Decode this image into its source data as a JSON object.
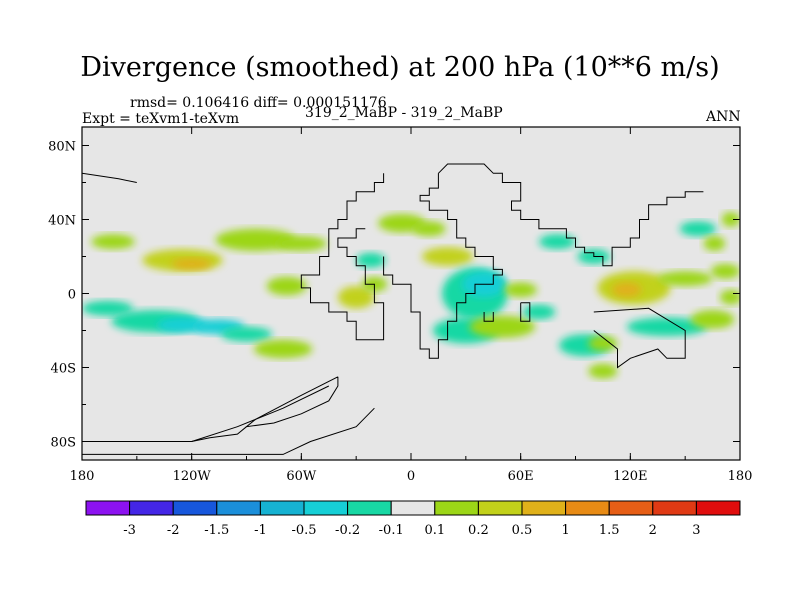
{
  "title": "Divergence (smoothed) at 200 hPa (10**6 m/s)",
  "stats": "rmsd= 0.106416 diff= 0.000151176",
  "left_string": "Expt = teXvm1-teXvm",
  "center_string": "319_2_MaBP - 319_2_MaBP",
  "right_string": "ANN",
  "colors": {
    "missing": "#e6e6e6",
    "coast": "#000000"
  },
  "chart_data": {
    "type": "heatmap",
    "projection": "cylindrical-equidistant",
    "field": "divergence difference",
    "units": "10**6 m/s",
    "xlim": [
      -180,
      180
    ],
    "ylim": [
      -90,
      90
    ],
    "x_ticks": [
      {
        "value": -180,
        "label": "180"
      },
      {
        "value": -120,
        "label": "120W"
      },
      {
        "value": -60,
        "label": "60W"
      },
      {
        "value": 0,
        "label": "0"
      },
      {
        "value": 60,
        "label": "60E"
      },
      {
        "value": 120,
        "label": "120E"
      },
      {
        "value": 180,
        "label": "180"
      }
    ],
    "y_ticks": [
      {
        "value": 80,
        "label": "80N"
      },
      {
        "value": 40,
        "label": "40N"
      },
      {
        "value": 0,
        "label": "0"
      },
      {
        "value": -40,
        "label": "40S"
      },
      {
        "value": -80,
        "label": "80S"
      }
    ],
    "levels": [
      "-3",
      "-2",
      "-1.5",
      "-1",
      "-0.5",
      "-0.2",
      "-0.1",
      "0.1",
      "0.2",
      "0.5",
      "1",
      "1.5",
      "2",
      "3"
    ],
    "colorbar_colors": [
      "#8c12f0",
      "#4426e6",
      "#1757dc",
      "#1b8fda",
      "#16b2d2",
      "#16cfd6",
      "#18d8a4",
      "#e6e6e6",
      "#9cd617",
      "#c2d11a",
      "#e0b11a",
      "#e88b15",
      "#e65e16",
      "#e03a14",
      "#e00d0d"
    ],
    "blobs": [
      {
        "lon": -163,
        "lat": 28,
        "a": 12,
        "b": 4,
        "value": 0.15
      },
      {
        "lon": -125,
        "lat": 18,
        "a": 22,
        "b": 6,
        "value": 0.35
      },
      {
        "lon": -120,
        "lat": 16,
        "a": 11,
        "b": 3,
        "value": 0.75
      },
      {
        "lon": -85,
        "lat": 29,
        "a": 22,
        "b": 6,
        "value": 0.15
      },
      {
        "lon": -60,
        "lat": 27,
        "a": 14,
        "b": 4,
        "value": 0.15
      },
      {
        "lon": -166,
        "lat": -8,
        "a": 14,
        "b": 4,
        "value": -0.15
      },
      {
        "lon": -140,
        "lat": -15,
        "a": 24,
        "b": 6,
        "value": -0.15
      },
      {
        "lon": -125,
        "lat": -17,
        "a": 14,
        "b": 4,
        "value": -0.35
      },
      {
        "lon": -105,
        "lat": -18,
        "a": 14,
        "b": 4,
        "value": -0.35
      },
      {
        "lon": -90,
        "lat": -22,
        "a": 14,
        "b": 4,
        "value": -0.15
      },
      {
        "lon": -68,
        "lat": 4,
        "a": 11,
        "b": 5,
        "value": 0.15
      },
      {
        "lon": -70,
        "lat": -30,
        "a": 16,
        "b": 5,
        "value": 0.15
      },
      {
        "lon": -5,
        "lat": 38,
        "a": 13,
        "b": 5,
        "value": 0.15
      },
      {
        "lon": 10,
        "lat": 35,
        "a": 9,
        "b": 4,
        "value": 0.15
      },
      {
        "lon": 20,
        "lat": 20,
        "a": 14,
        "b": 5,
        "value": 0.25
      },
      {
        "lon": -22,
        "lat": 18,
        "a": 8,
        "b": 4,
        "value": -0.15
      },
      {
        "lon": -30,
        "lat": -2,
        "a": 10,
        "b": 6,
        "value": 0.25
      },
      {
        "lon": -20,
        "lat": 5,
        "a": 7,
        "b": 4,
        "value": 0.15
      },
      {
        "lon": 35,
        "lat": 0,
        "a": 18,
        "b": 14,
        "value": -0.15
      },
      {
        "lon": 40,
        "lat": 5,
        "a": 12,
        "b": 7,
        "value": -0.35
      },
      {
        "lon": 30,
        "lat": -20,
        "a": 18,
        "b": 7,
        "value": -0.15
      },
      {
        "lon": 50,
        "lat": -18,
        "a": 18,
        "b": 6,
        "value": 0.15
      },
      {
        "lon": 60,
        "lat": 2,
        "a": 9,
        "b": 4,
        "value": 0.15
      },
      {
        "lon": 70,
        "lat": -10,
        "a": 9,
        "b": 4,
        "value": -0.15
      },
      {
        "lon": 80,
        "lat": 28,
        "a": 10,
        "b": 4,
        "value": -0.15
      },
      {
        "lon": 100,
        "lat": 20,
        "a": 9,
        "b": 4,
        "value": -0.15
      },
      {
        "lon": 95,
        "lat": -28,
        "a": 14,
        "b": 6,
        "value": -0.15
      },
      {
        "lon": 105,
        "lat": -27,
        "a": 8,
        "b": 4,
        "value": 0.15
      },
      {
        "lon": 105,
        "lat": -42,
        "a": 8,
        "b": 4,
        "value": 0.15
      },
      {
        "lon": 122,
        "lat": 3,
        "a": 20,
        "b": 9,
        "value": 0.3
      },
      {
        "lon": 118,
        "lat": 2,
        "a": 8,
        "b": 4,
        "value": 0.7
      },
      {
        "lon": 150,
        "lat": 8,
        "a": 15,
        "b": 4,
        "value": 0.15
      },
      {
        "lon": 140,
        "lat": -18,
        "a": 22,
        "b": 5,
        "value": -0.15
      },
      {
        "lon": 165,
        "lat": -14,
        "a": 12,
        "b": 5,
        "value": 0.15
      },
      {
        "lon": 172,
        "lat": 12,
        "a": 8,
        "b": 4,
        "value": 0.15
      },
      {
        "lon": 175,
        "lat": -2,
        "a": 6,
        "b": 4,
        "value": 0.15
      },
      {
        "lon": 157,
        "lat": 35,
        "a": 10,
        "b": 4,
        "value": -0.15
      },
      {
        "lon": 166,
        "lat": 27,
        "a": 6,
        "b": 4,
        "value": 0.15
      },
      {
        "lon": 175,
        "lat": 40,
        "a": 5,
        "b": 4,
        "value": 0.15
      }
    ],
    "coastlines": [
      [
        [
          -15,
          65
        ],
        [
          -15,
          60
        ],
        [
          -20,
          60
        ],
        [
          -20,
          55
        ],
        [
          -30,
          55
        ],
        [
          -30,
          50
        ],
        [
          -35,
          50
        ],
        [
          -35,
          40
        ],
        [
          -40,
          40
        ],
        [
          -40,
          35
        ],
        [
          -45,
          35
        ],
        [
          -45,
          20
        ],
        [
          -50,
          20
        ],
        [
          -50,
          10
        ],
        [
          -60,
          10
        ],
        [
          -60,
          3
        ],
        [
          -55,
          3
        ],
        [
          -55,
          -5
        ],
        [
          -45,
          -5
        ],
        [
          -45,
          -10
        ],
        [
          -35,
          -10
        ],
        [
          -35,
          -15
        ],
        [
          -30,
          -15
        ],
        [
          -30,
          -25
        ],
        [
          -15,
          -25
        ],
        [
          -15,
          -5
        ],
        [
          -20,
          -5
        ],
        [
          -20,
          5
        ],
        [
          -25,
          5
        ],
        [
          -25,
          15
        ],
        [
          -30,
          15
        ],
        [
          -30,
          20
        ],
        [
          -35,
          20
        ],
        [
          -35,
          25
        ],
        [
          -40,
          25
        ],
        [
          -40,
          30
        ],
        [
          -30,
          30
        ],
        [
          -30,
          35
        ],
        [
          -25,
          35
        ]
      ],
      [
        [
          -40,
          -45
        ],
        [
          -60,
          -55
        ],
        [
          -85,
          -68
        ],
        [
          -90,
          -72
        ],
        [
          -75,
          -70
        ],
        [
          -60,
          -65
        ],
        [
          -45,
          -58
        ],
        [
          -40,
          -50
        ],
        [
          -40,
          -45
        ]
      ],
      [
        [
          -45,
          -50
        ],
        [
          -70,
          -62
        ],
        [
          -95,
          -72
        ],
        [
          -120,
          -80
        ],
        [
          -180,
          -80
        ]
      ],
      [
        [
          -180,
          -87
        ],
        [
          -70,
          -87
        ],
        [
          -55,
          -80
        ],
        [
          -30,
          -72
        ],
        [
          -20,
          -62
        ]
      ],
      [
        [
          -90,
          -72
        ],
        [
          -95,
          -76
        ],
        [
          -110,
          -78
        ],
        [
          -120,
          -80
        ]
      ],
      [
        [
          15,
          65
        ],
        [
          15,
          57
        ],
        [
          10,
          57
        ],
        [
          10,
          53
        ],
        [
          5,
          53
        ],
        [
          5,
          50
        ],
        [
          10,
          50
        ],
        [
          10,
          45
        ],
        [
          20,
          45
        ],
        [
          20,
          40
        ],
        [
          25,
          40
        ],
        [
          25,
          30
        ],
        [
          30,
          30
        ],
        [
          30,
          25
        ],
        [
          35,
          25
        ],
        [
          35,
          20
        ],
        [
          45,
          20
        ],
        [
          45,
          13
        ],
        [
          50,
          13
        ],
        [
          50,
          10
        ],
        [
          45,
          10
        ],
        [
          45,
          5
        ],
        [
          35,
          5
        ],
        [
          35,
          0
        ],
        [
          30,
          0
        ],
        [
          30,
          -5
        ],
        [
          25,
          -5
        ],
        [
          25,
          -15
        ],
        [
          20,
          -15
        ],
        [
          20,
          -25
        ],
        [
          15,
          -25
        ],
        [
          15,
          -35
        ],
        [
          10,
          -35
        ],
        [
          10,
          -30
        ],
        [
          5,
          -30
        ],
        [
          5,
          -10
        ],
        [
          0,
          -10
        ],
        [
          0,
          5
        ],
        [
          -10,
          5
        ],
        [
          -10,
          10
        ],
        [
          -15,
          10
        ],
        [
          -15,
          20
        ]
      ],
      [
        [
          15,
          65
        ],
        [
          20,
          70
        ],
        [
          40,
          70
        ],
        [
          45,
          65
        ],
        [
          50,
          65
        ],
        [
          50,
          60
        ],
        [
          60,
          60
        ],
        [
          60,
          50
        ],
        [
          55,
          50
        ],
        [
          55,
          45
        ],
        [
          60,
          45
        ],
        [
          60,
          40
        ],
        [
          70,
          40
        ],
        [
          70,
          35
        ],
        [
          85,
          35
        ],
        [
          85,
          30
        ],
        [
          90,
          30
        ],
        [
          90,
          25
        ],
        [
          95,
          25
        ],
        [
          95,
          22
        ],
        [
          100,
          22
        ],
        [
          100,
          20
        ],
        [
          105,
          20
        ],
        [
          105,
          15
        ],
        [
          110,
          15
        ],
        [
          110,
          25
        ],
        [
          120,
          25
        ],
        [
          120,
          30
        ],
        [
          125,
          30
        ],
        [
          125,
          40
        ],
        [
          130,
          40
        ],
        [
          130,
          48
        ],
        [
          140,
          48
        ],
        [
          140,
          52
        ],
        [
          150,
          52
        ],
        [
          150,
          55
        ],
        [
          160,
          55
        ]
      ],
      [
        [
          60,
          -5
        ],
        [
          65,
          -5
        ],
        [
          65,
          -15
        ],
        [
          60,
          -15
        ],
        [
          60,
          -5
        ]
      ],
      [
        [
          100,
          -10
        ],
        [
          130,
          -8
        ],
        [
          150,
          -20
        ],
        [
          150,
          -35
        ],
        [
          140,
          -35
        ],
        [
          135,
          -30
        ],
        [
          120,
          -35
        ],
        [
          113,
          -40
        ],
        [
          113,
          -30
        ],
        [
          100,
          -20
        ]
      ],
      [
        [
          40,
          -10
        ],
        [
          40,
          -15
        ],
        [
          45,
          -15
        ],
        [
          45,
          -10
        ]
      ],
      [
        [
          -180,
          65
        ],
        [
          -160,
          62
        ],
        [
          -150,
          60
        ]
      ]
    ]
  }
}
